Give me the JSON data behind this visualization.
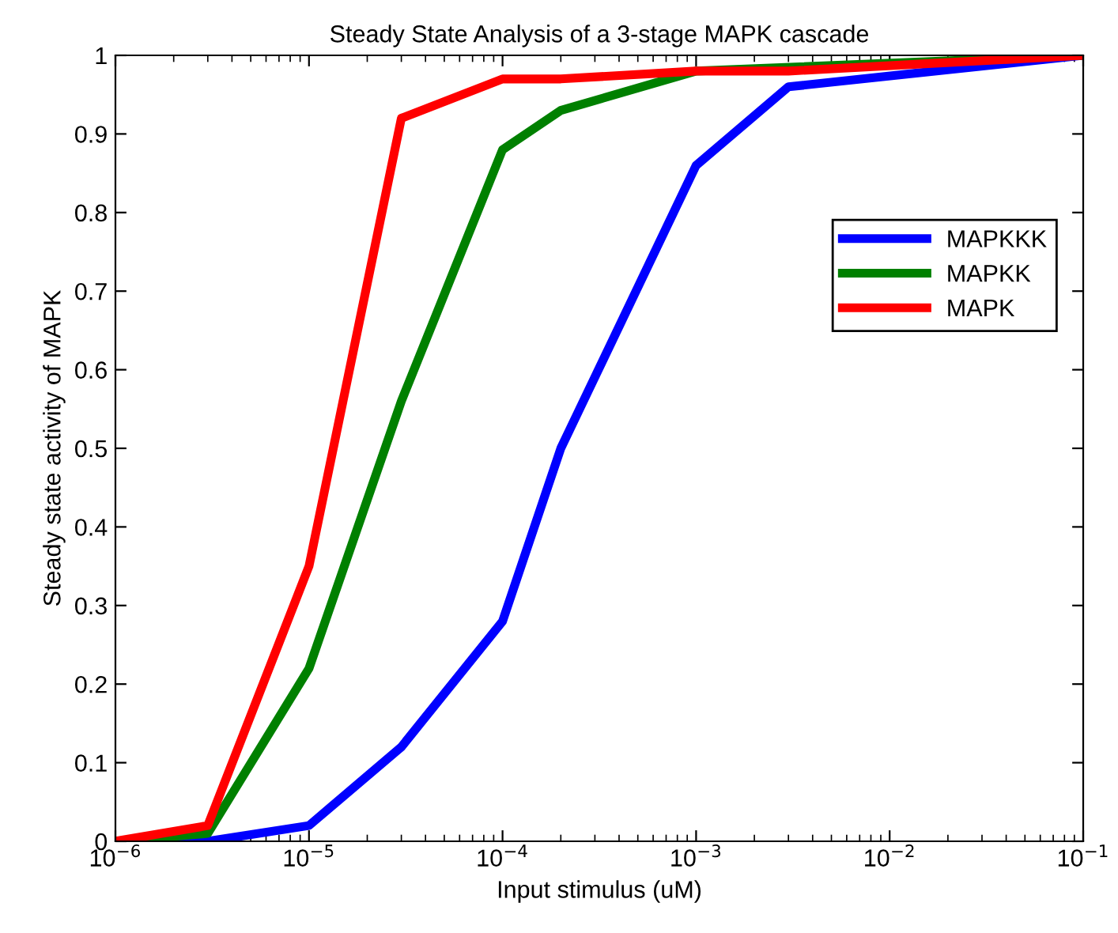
{
  "chart_data": {
    "type": "line",
    "title": "Steady State Analysis of a 3-stage MAPK cascade",
    "xlabel": "Input stimulus (uM)",
    "ylabel": "Steady state activity of MAPK",
    "log": "x",
    "xlim": [
      1e-06,
      0.1
    ],
    "ylim": [
      0,
      1
    ],
    "xticks": [
      {
        "value": 1e-06,
        "label": "10$^{−6}$"
      },
      {
        "value": 1e-05,
        "label": "10$^{−5}$"
      },
      {
        "value": 0.0001,
        "label": "10$^{−4}$"
      },
      {
        "value": 0.001,
        "label": "10$^{−3}$"
      },
      {
        "value": 0.01,
        "label": "10$^{−2}$"
      },
      {
        "value": 0.1,
        "label": "10$^{−1}$"
      }
    ],
    "yticks": [
      0,
      0.1,
      0.2,
      0.3,
      0.4,
      0.5,
      0.6,
      0.7,
      0.8,
      0.9,
      1
    ],
    "grid": false,
    "legend": "right",
    "marker": "none",
    "line_style": "solid",
    "x": [
      1e-06,
      3e-06,
      1e-05,
      3e-05,
      0.0001,
      0.0002,
      0.001,
      0.003,
      0.1
    ],
    "series": [
      {
        "name": "MAPKKK",
        "color": "#0000ff",
        "values": [
          0,
          0,
          0.02,
          0.12,
          0.28,
          0.5,
          0.86,
          0.96,
          1.0
        ]
      },
      {
        "name": "MAPKK",
        "color": "#008000",
        "x": [
          1e-06,
          3e-06,
          1e-05,
          3e-05,
          0.0001,
          0.0002,
          0.001,
          0.1
        ],
        "values": [
          0,
          0.01,
          0.22,
          0.56,
          0.88,
          0.93,
          0.98,
          1.0
        ]
      },
      {
        "name": "MAPK",
        "color": "#ff0000",
        "values": [
          0,
          0.02,
          0.35,
          0.92,
          0.97,
          0.97,
          0.98,
          0.98,
          1.0
        ]
      }
    ]
  }
}
